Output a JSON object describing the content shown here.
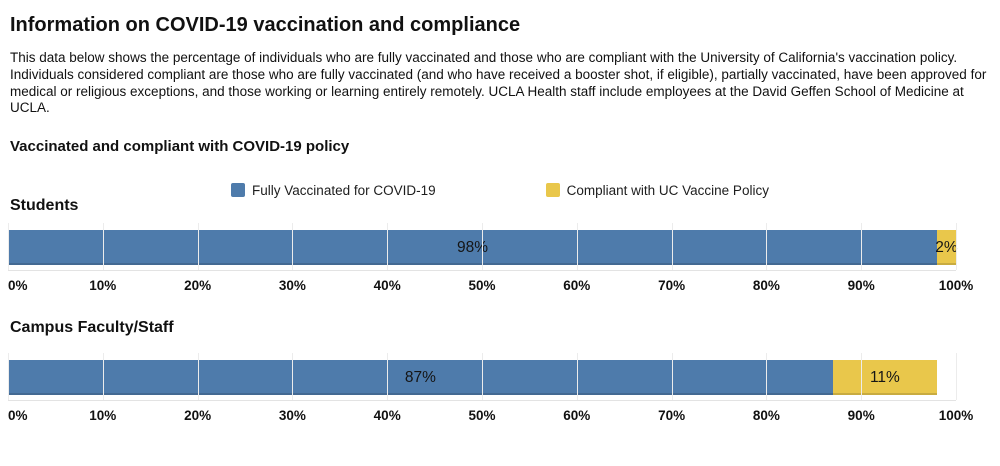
{
  "page": {
    "title": "Information on COVID-19 vaccination and compliance",
    "description": "This data below shows the percentage of individuals who are fully vaccinated and those who are compliant with the University of California's vaccination policy. Individuals considered compliant are those who are fully vaccinated (and who have received a booster shot, if eligible), partially vaccinated, have been approved for medical or religious exceptions, and those working or learning entirely remotely. UCLA Health staff include employees at the David Geffen School of Medicine at UCLA.",
    "subtitle": "Vaccinated and compliant with COVID-19 policy"
  },
  "colors": {
    "vaccinated": "#4e7bab",
    "compliant": "#e9c74b",
    "gridline": "#ececec",
    "axis_line": "#e3e3e3"
  },
  "legend": {
    "items": [
      {
        "label": "Fully Vaccinated for COVID-19",
        "color": "#4e7bab"
      },
      {
        "label": "Compliant with UC Vaccine Policy",
        "color": "#e9c74b"
      }
    ]
  },
  "axis": {
    "ticks": [
      "0%",
      "10%",
      "20%",
      "30%",
      "40%",
      "50%",
      "60%",
      "70%",
      "80%",
      "90%",
      "100%"
    ]
  },
  "charts": [
    {
      "title": "Students",
      "vaccinated_pct": 98,
      "compliant_pct": 2,
      "vaccinated_label": "98%",
      "compliant_label": "2%"
    },
    {
      "title": "Campus Faculty/Staff",
      "vaccinated_pct": 87,
      "compliant_pct": 11,
      "vaccinated_label": "87%",
      "compliant_label": "11%"
    }
  ],
  "chart_data": [
    {
      "type": "bar",
      "orientation": "horizontal",
      "stacked": true,
      "title": "Students",
      "categories": [
        "Students"
      ],
      "series": [
        {
          "name": "Fully Vaccinated for COVID-19",
          "values": [
            98
          ],
          "color": "#4e7bab",
          "data_labels": [
            "98%"
          ]
        },
        {
          "name": "Compliant with UC Vaccine Policy",
          "values": [
            2
          ],
          "color": "#e9c74b",
          "data_labels": [
            "2%"
          ]
        }
      ],
      "xlabel": "",
      "ylabel": "",
      "xlim": [
        0,
        100
      ],
      "x_tick_labels": [
        "0%",
        "10%",
        "20%",
        "30%",
        "40%",
        "50%",
        "60%",
        "70%",
        "80%",
        "90%",
        "100%"
      ],
      "grid": true,
      "legend_position": "top"
    },
    {
      "type": "bar",
      "orientation": "horizontal",
      "stacked": true,
      "title": "Campus Faculty/Staff",
      "categories": [
        "Campus Faculty/Staff"
      ],
      "series": [
        {
          "name": "Fully Vaccinated for COVID-19",
          "values": [
            87
          ],
          "color": "#4e7bab",
          "data_labels": [
            "87%"
          ]
        },
        {
          "name": "Compliant with UC Vaccine Policy",
          "values": [
            11
          ],
          "color": "#e9c74b",
          "data_labels": [
            "11%"
          ]
        }
      ],
      "xlabel": "",
      "ylabel": "",
      "xlim": [
        0,
        100
      ],
      "x_tick_labels": [
        "0%",
        "10%",
        "20%",
        "30%",
        "40%",
        "50%",
        "60%",
        "70%",
        "80%",
        "90%",
        "100%"
      ],
      "grid": true,
      "legend_position": "top"
    }
  ]
}
